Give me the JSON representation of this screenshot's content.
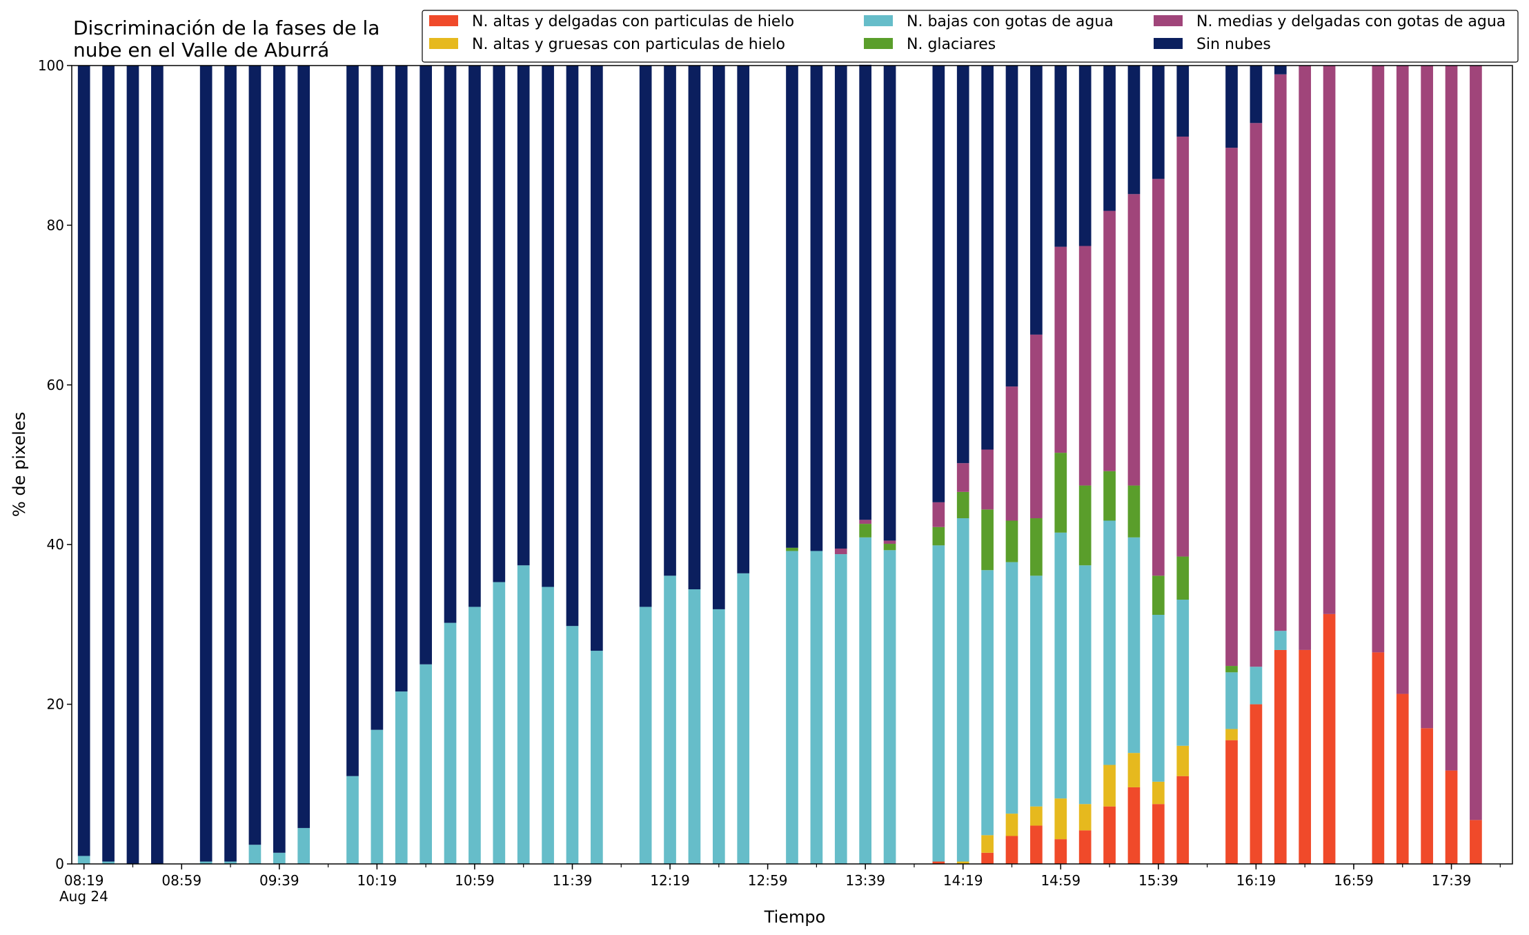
{
  "chart_data": {
    "type": "bar",
    "stacked": true,
    "title_lines": [
      "Discriminación de la fases de la",
      "nube en el Valle de Aburrá"
    ],
    "xlabel": "Tiempo",
    "ylabel": "% de pixeles",
    "ylim": [
      0,
      100
    ],
    "yticks": [
      0,
      20,
      40,
      60,
      80,
      100
    ],
    "xlim": [
      "08:14",
      "18:04"
    ],
    "date_label": "Aug 24",
    "xtick_labels": [
      "08:19",
      "08:59",
      "09:39",
      "10:19",
      "10:59",
      "11:39",
      "12:19",
      "12:59",
      "13:39",
      "14:19",
      "14:59",
      "15:39",
      "16:19",
      "16:59",
      "17:39"
    ],
    "legend_position": "top-right",
    "grid": false,
    "x": [
      "08:19",
      "08:29",
      "08:39",
      "08:49",
      "09:09",
      "09:19",
      "09:29",
      "09:39",
      "09:49",
      "10:09",
      "10:19",
      "10:29",
      "10:39",
      "10:49",
      "10:59",
      "11:09",
      "11:19",
      "11:29",
      "11:39",
      "11:49",
      "12:09",
      "12:19",
      "12:29",
      "12:39",
      "12:49",
      "13:09",
      "13:19",
      "13:29",
      "13:39",
      "13:49",
      "14:09",
      "14:19",
      "14:29",
      "14:39",
      "14:49",
      "14:59",
      "15:09",
      "15:19",
      "15:29",
      "15:39",
      "15:49",
      "16:09",
      "16:19",
      "16:29",
      "16:39",
      "16:49",
      "17:09",
      "17:19",
      "17:29",
      "17:39",
      "17:49"
    ],
    "series": [
      {
        "name": "N. altas y delgadas con particulas de hielo",
        "color": "#f04a2a",
        "values": [
          0,
          0,
          0,
          0,
          0,
          0,
          0,
          0,
          0,
          0,
          0,
          0,
          0,
          0,
          0,
          0,
          0,
          0,
          0,
          0,
          0,
          0,
          0,
          0,
          0,
          0,
          0,
          0,
          0,
          0,
          0.3,
          0,
          1.4,
          3.5,
          4.8,
          3.1,
          4.2,
          7.2,
          9.6,
          7.5,
          11.0,
          15.5,
          20.0,
          26.8,
          26.8,
          31.3,
          26.5,
          21.3,
          17.0,
          11.7,
          5.5
        ]
      },
      {
        "name": "N. altas y gruesas con particulas de hielo",
        "color": "#e6b91e",
        "values": [
          0,
          0,
          0,
          0,
          0,
          0,
          0,
          0,
          0,
          0,
          0,
          0,
          0,
          0,
          0,
          0,
          0,
          0,
          0,
          0,
          0,
          0,
          0,
          0,
          0,
          0,
          0,
          0,
          0,
          0,
          0,
          0.3,
          2.2,
          2.8,
          2.4,
          5.1,
          3.3,
          5.2,
          4.3,
          2.8,
          3.8,
          1.4,
          0,
          0,
          0,
          0,
          0,
          0,
          0,
          0,
          0
        ]
      },
      {
        "name": "N. bajas con gotas de agua",
        "color": "#66bdc9",
        "values": [
          1.0,
          0.3,
          0,
          0,
          0.3,
          0.3,
          2.4,
          1.4,
          4.5,
          11.0,
          16.8,
          21.6,
          25.0,
          30.2,
          32.2,
          35.3,
          37.4,
          34.7,
          29.8,
          26.7,
          32.2,
          36.1,
          34.4,
          31.9,
          36.4,
          39.2,
          39.2,
          38.8,
          40.9,
          39.3,
          39.6,
          43.0,
          33.2,
          31.5,
          28.9,
          33.3,
          29.9,
          30.6,
          27.0,
          20.9,
          18.3,
          7.1,
          4.7,
          2.4,
          0,
          0,
          0,
          0,
          0,
          0,
          0
        ]
      },
      {
        "name": "N. glaciares",
        "color": "#5a9e2b",
        "values": [
          0,
          0,
          0,
          0,
          0,
          0,
          0,
          0,
          0,
          0,
          0,
          0,
          0,
          0,
          0,
          0,
          0,
          0,
          0,
          0,
          0,
          0,
          0,
          0,
          0,
          0.4,
          0,
          0,
          1.7,
          0.8,
          2.3,
          3.3,
          7.6,
          5.2,
          7.2,
          10.0,
          10.0,
          6.2,
          6.5,
          4.9,
          5.4,
          0.8,
          0,
          0,
          0,
          0,
          0,
          0,
          0,
          0,
          0
        ]
      },
      {
        "name": "N. medias y delgadas con gotas de agua",
        "color": "#a0457a",
        "values": [
          0,
          0,
          0,
          0,
          0,
          0,
          0,
          0,
          0,
          0,
          0,
          0,
          0,
          0,
          0,
          0,
          0,
          0,
          0,
          0,
          0,
          0,
          0,
          0,
          0,
          0,
          0,
          0.7,
          0.5,
          0.4,
          3.1,
          3.6,
          7.5,
          16.8,
          23.0,
          25.8,
          30.0,
          32.6,
          36.5,
          49.7,
          52.6,
          64.9,
          68.1,
          69.7,
          73.2,
          68.7,
          73.5,
          78.7,
          83.0,
          88.3,
          94.5
        ]
      },
      {
        "name": "Sin nubes",
        "color": "#0b1f5e",
        "values": [
          99.0,
          99.7,
          100,
          100,
          99.7,
          99.7,
          97.6,
          98.6,
          95.5,
          89.0,
          83.2,
          78.4,
          75.0,
          69.8,
          67.8,
          64.7,
          62.6,
          65.3,
          70.2,
          73.3,
          67.8,
          63.9,
          65.6,
          68.1,
          63.6,
          60.4,
          60.8,
          60.5,
          57.0,
          59.5,
          54.7,
          49.8,
          48.1,
          40.2,
          33.7,
          22.7,
          22.6,
          18.2,
          16.1,
          14.2,
          8.9,
          10.3,
          7.2,
          1.1,
          0,
          0,
          0,
          0,
          0,
          0,
          0
        ]
      }
    ]
  }
}
